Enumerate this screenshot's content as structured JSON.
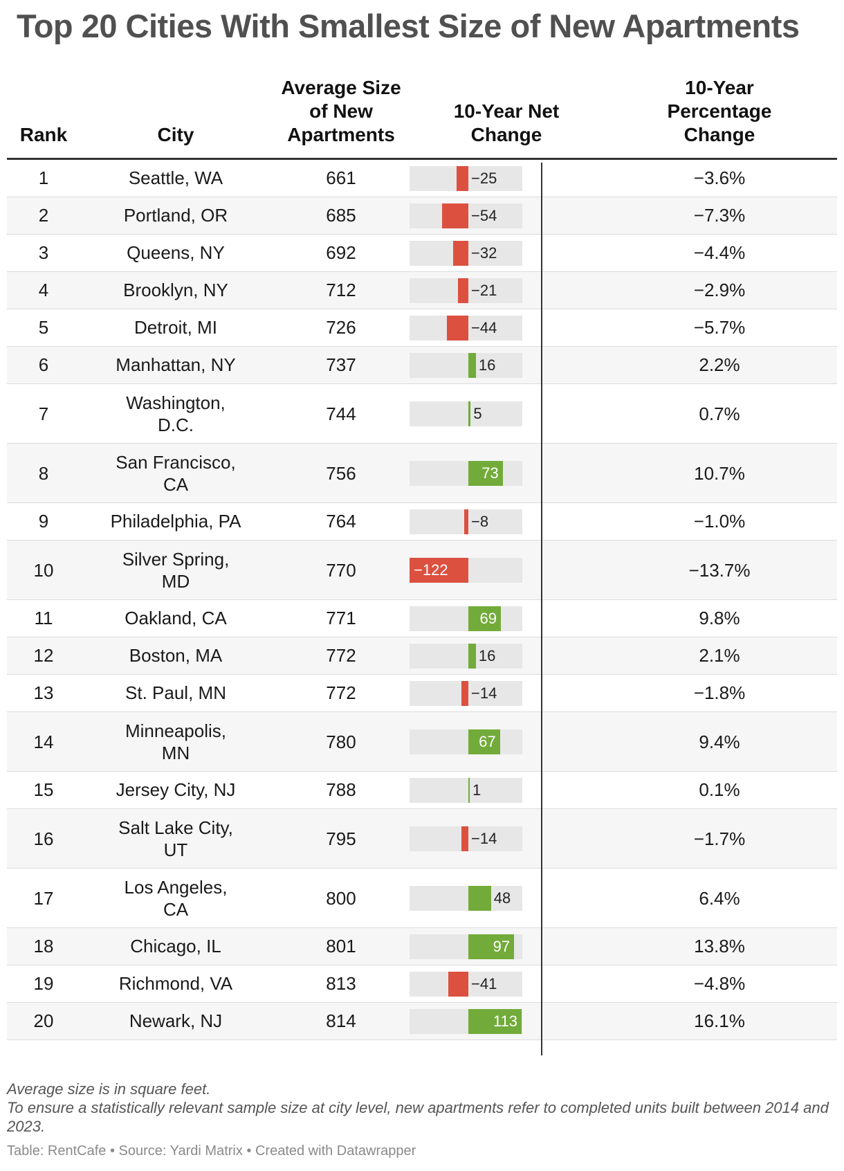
{
  "title": "Top 20 Cities With Smallest Size of New Apartments",
  "headers": {
    "rank": "Rank",
    "city": "City",
    "avg_size": [
      "Average Size",
      "of New",
      "Apartments"
    ],
    "net_change": [
      "10-Year Net",
      "Change"
    ],
    "pct_change": [
      "10-Year",
      "Percentage",
      "Change"
    ]
  },
  "colors": {
    "negative": "#dc5040",
    "positive": "#72ab3a",
    "track": "#e7e7e7",
    "title": "#505050"
  },
  "chart_data": {
    "type": "table",
    "bar_column": "10-Year Net Change",
    "bar_range": [
      -122,
      113
    ],
    "rows": [
      {
        "rank": "1",
        "city": "Seattle, WA",
        "size": "661",
        "net": -25,
        "net_label": "−25",
        "pct": "−3.6%"
      },
      {
        "rank": "2",
        "city": "Portland, OR",
        "size": "685",
        "net": -54,
        "net_label": "−54",
        "pct": "−7.3%"
      },
      {
        "rank": "3",
        "city": "Queens, NY",
        "size": "692",
        "net": -32,
        "net_label": "−32",
        "pct": "−4.4%"
      },
      {
        "rank": "4",
        "city": "Brooklyn, NY",
        "size": "712",
        "net": -21,
        "net_label": "−21",
        "pct": "−2.9%"
      },
      {
        "rank": "5",
        "city": "Detroit, MI",
        "size": "726",
        "net": -44,
        "net_label": "−44",
        "pct": "−5.7%"
      },
      {
        "rank": "6",
        "city": "Manhattan, NY",
        "size": "737",
        "net": 16,
        "net_label": "16",
        "pct": "2.2%"
      },
      {
        "rank": "7",
        "city": "Washington, D.C.",
        "size": "744",
        "net": 5,
        "net_label": "5",
        "pct": "0.7%"
      },
      {
        "rank": "8",
        "city": "San Francisco, CA",
        "size": "756",
        "net": 73,
        "net_label": "73",
        "pct": "10.7%"
      },
      {
        "rank": "9",
        "city": "Philadelphia, PA",
        "size": "764",
        "net": -8,
        "net_label": "−8",
        "pct": "−1.0%"
      },
      {
        "rank": "10",
        "city": "Silver Spring, MD",
        "size": "770",
        "net": -122,
        "net_label": "−122",
        "pct": "−13.7%"
      },
      {
        "rank": "11",
        "city": "Oakland, CA",
        "size": "771",
        "net": 69,
        "net_label": "69",
        "pct": "9.8%"
      },
      {
        "rank": "12",
        "city": "Boston, MA",
        "size": "772",
        "net": 16,
        "net_label": "16",
        "pct": "2.1%"
      },
      {
        "rank": "13",
        "city": "St. Paul, MN",
        "size": "772",
        "net": -14,
        "net_label": "−14",
        "pct": "−1.8%"
      },
      {
        "rank": "14",
        "city": "Minneapolis, MN",
        "size": "780",
        "net": 67,
        "net_label": "67",
        "pct": "9.4%"
      },
      {
        "rank": "15",
        "city": "Jersey City, NJ",
        "size": "788",
        "net": 1,
        "net_label": "1",
        "pct": "0.1%"
      },
      {
        "rank": "16",
        "city": "Salt Lake City, UT",
        "size": "795",
        "net": -14,
        "net_label": "−14",
        "pct": "−1.7%"
      },
      {
        "rank": "17",
        "city": "Los Angeles, CA",
        "size": "800",
        "net": 48,
        "net_label": "48",
        "pct": "6.4%"
      },
      {
        "rank": "18",
        "city": "Chicago, IL",
        "size": "801",
        "net": 97,
        "net_label": "97",
        "pct": "13.8%"
      },
      {
        "rank": "19",
        "city": "Richmond, VA",
        "size": "813",
        "net": -41,
        "net_label": "−41",
        "pct": "−4.8%"
      },
      {
        "rank": "20",
        "city": "Newark, NJ",
        "size": "814",
        "net": 113,
        "net_label": "113",
        "pct": "16.1%"
      }
    ]
  },
  "notes": [
    "Average size is in square feet.",
    "To ensure a statistically relevant sample size at city level, new apartments refer to completed units built between 2014 and 2023."
  ],
  "footer": "Table: RentCafe • Source: Yardi Matrix • Created with Datawrapper"
}
